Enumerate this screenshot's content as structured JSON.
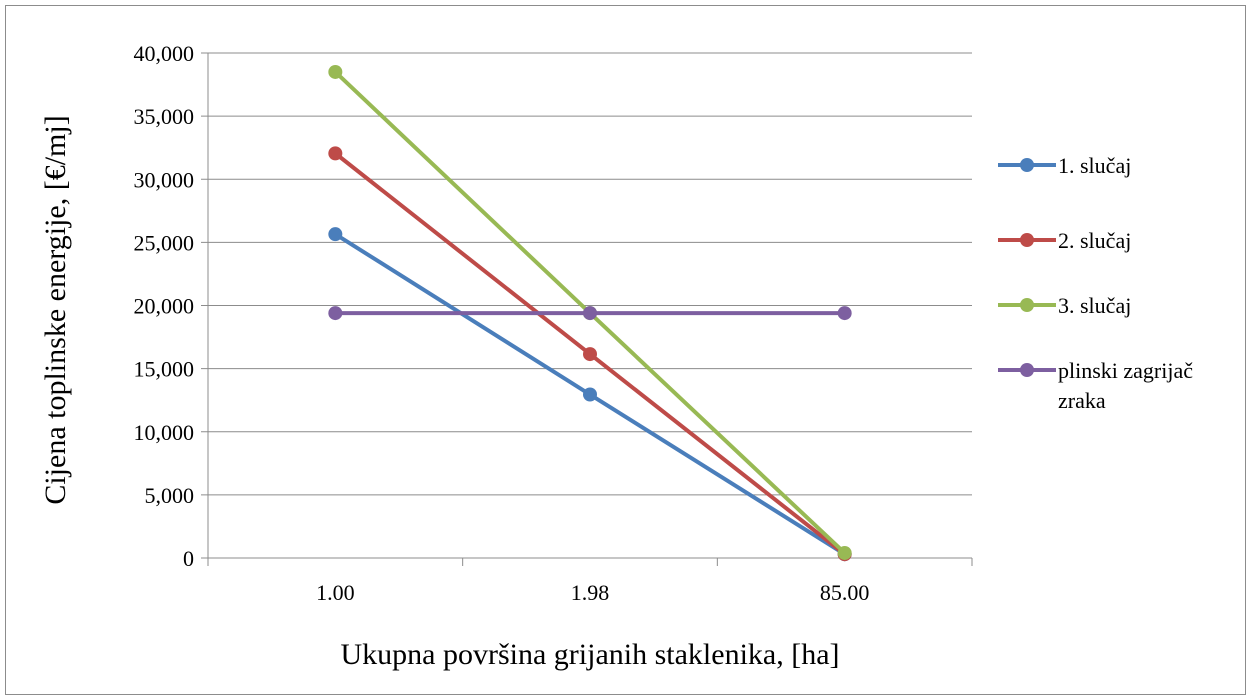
{
  "chart_data": {
    "type": "line",
    "categories": [
      "1.00",
      "1.98",
      "85.00"
    ],
    "series": [
      {
        "name": "1. slučaj",
        "values": [
          25650,
          12950,
          300
        ],
        "color": "#4a7ebb"
      },
      {
        "name": "2. slučaj",
        "values": [
          32050,
          16150,
          300
        ],
        "color": "#be4b48"
      },
      {
        "name": "3. slučaj",
        "values": [
          38500,
          19400,
          400
        ],
        "color": "#98b954"
      },
      {
        "name": "plinski zagrijač zraka",
        "name_lines": [
          "plinski zagrijač",
          "zraka"
        ],
        "values": [
          19400,
          19400,
          19400
        ],
        "color": "#7d5fa0"
      }
    ],
    "yticks": [
      "0",
      "5,000",
      "10,000",
      "15,000",
      "20,000",
      "25,000",
      "30,000",
      "35,000",
      "40,000"
    ],
    "ylim": [
      0,
      40000
    ],
    "xlabel": "Ukupna površina grijanih staklenika, [ha]",
    "ylabel": "Cijena toplinske energije, [€/mj]",
    "grid": true,
    "legend_position": "right"
  }
}
